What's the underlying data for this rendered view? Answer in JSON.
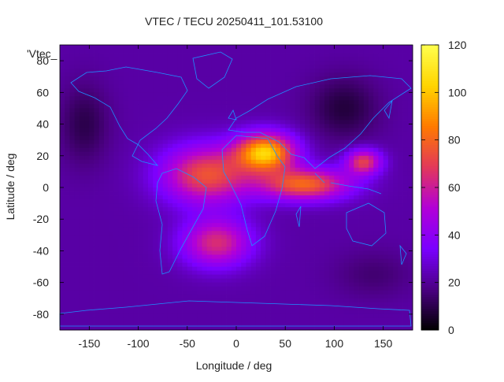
{
  "chart_data": {
    "type": "heatmap",
    "title": "VTEC / TECU 20250411_101.53100",
    "xlabel": "Longitude / deg",
    "ylabel": "Latitude / deg",
    "series_label": "'Vtec_",
    "xlim": [
      -180,
      180
    ],
    "ylim": [
      -90,
      90
    ],
    "x_ticks": [
      -150,
      -100,
      -50,
      0,
      50,
      100,
      150
    ],
    "y_ticks": [
      -80,
      -60,
      -40,
      -20,
      0,
      20,
      40,
      60,
      80
    ],
    "colorbar": {
      "min": 0,
      "max": 120,
      "ticks": [
        0,
        20,
        40,
        60,
        80,
        100,
        120
      ],
      "palette": [
        "#000000",
        "#4b0082",
        "#7a00ff",
        "#b200d8",
        "#e2385a",
        "#ff7a00",
        "#ffd400",
        "#ffff4d"
      ]
    },
    "field": {
      "background_vtec": 22,
      "peaks": [
        {
          "lon": 30,
          "lat": 22,
          "vtec": 100,
          "lon_spread": 30,
          "lat_spread": 12
        },
        {
          "lon": -30,
          "lat": 8,
          "vtec": 75,
          "lon_spread": 45,
          "lat_spread": 18
        },
        {
          "lon": 70,
          "lat": 2,
          "vtec": 80,
          "lon_spread": 45,
          "lat_spread": 10
        },
        {
          "lon": 130,
          "lat": 16,
          "vtec": 70,
          "lon_spread": 18,
          "lat_spread": 8
        },
        {
          "lon": -20,
          "lat": -35,
          "vtec": 65,
          "lon_spread": 35,
          "lat_spread": 15
        }
      ],
      "lows": [
        {
          "lon": 110,
          "lat": 50,
          "vtec": 8,
          "lon_spread": 35,
          "lat_spread": 20
        },
        {
          "lon": -155,
          "lat": 40,
          "vtec": 10,
          "lon_spread": 25,
          "lat_spread": 25
        },
        {
          "lon": 140,
          "lat": -55,
          "vtec": 15,
          "lon_spread": 40,
          "lat_spread": 15
        }
      ]
    },
    "coastline_color": "#1e90ff"
  }
}
